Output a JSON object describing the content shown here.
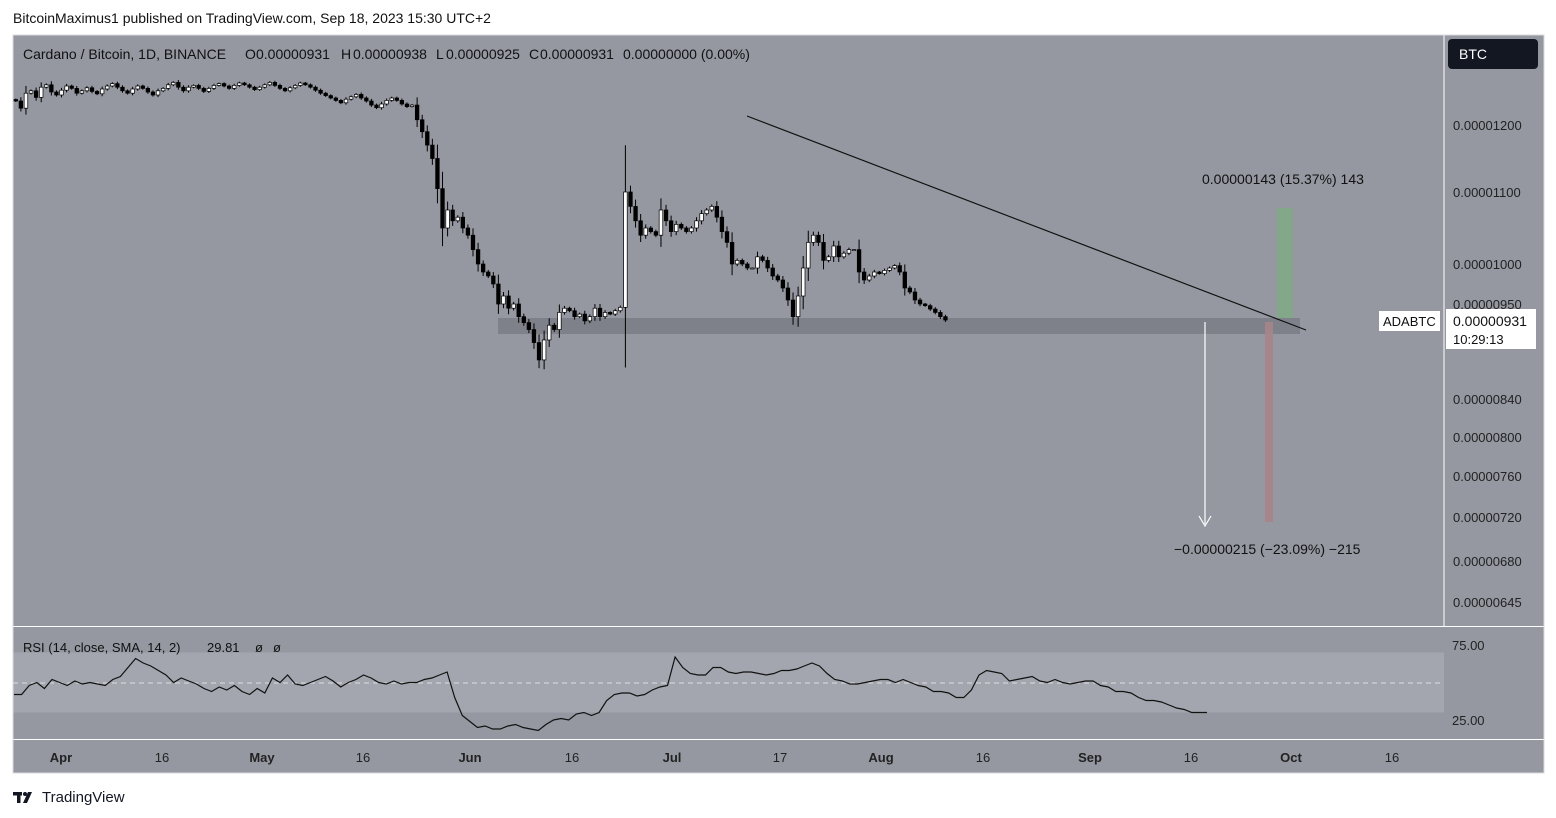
{
  "header": {
    "publisher": "BitcoinMaximus1 published on TradingView.com, Sep 18, 2023 15:30 UTC+2"
  },
  "legend": {
    "symbol": "Cardano / Bitcoin, 1D, BINANCE",
    "open_label": "O",
    "open_value": "0.00000931",
    "high_label": "H",
    "high_value": "0.00000938",
    "low_label": "L",
    "low_value": "0.00000925",
    "close_label": "C",
    "close_value": "0.00000931",
    "change": "0.00000000 (0.00%)"
  },
  "currency_badge": "BTC",
  "price_tag": {
    "ticker": "ADABTC",
    "price": "0.00000931",
    "countdown": "10:29:13"
  },
  "annotations": {
    "upside": "0.00000143 (15.37%) 143",
    "downside": "−0.00000215 (−23.09%) −215"
  },
  "rsi_legend": {
    "label": "RSI (14, close, SMA, 14, 2)",
    "value": "29.81",
    "extra1": "ø",
    "extra2": "ø"
  },
  "footer": {
    "brand": "TradingView"
  },
  "colors": {
    "panel_bg": "#9598a1",
    "text": "#222222",
    "up_candle": "#ffffff",
    "down_candle": "#000000",
    "support_zone": "#7a7d86",
    "target_up": "#80a886",
    "target_down": "#a78488",
    "rsi_band": "#a3a6ae"
  },
  "chart_data": {
    "type": "candlestick",
    "title": "Cardano / Bitcoin, 1D, BINANCE",
    "price_axis_ticks": [
      "0.00001200",
      "0.00001100",
      "0.00001000",
      "0.00000950",
      "0.00000840",
      "0.00000800",
      "0.00000760",
      "0.00000720",
      "0.00000680",
      "0.00000645"
    ],
    "time_axis_ticks": [
      {
        "label": "Apr",
        "bold": true
      },
      {
        "label": "16",
        "bold": false
      },
      {
        "label": "May",
        "bold": true
      },
      {
        "label": "16",
        "bold": false
      },
      {
        "label": "Jun",
        "bold": true
      },
      {
        "label": "16",
        "bold": false
      },
      {
        "label": "Jul",
        "bold": true
      },
      {
        "label": "17",
        "bold": false
      },
      {
        "label": "Aug",
        "bold": true
      },
      {
        "label": "16",
        "bold": false
      },
      {
        "label": "Sep",
        "bold": true
      },
      {
        "label": "16",
        "bold": false
      },
      {
        "label": "Oct",
        "bold": true
      },
      {
        "label": "16",
        "bold": false
      }
    ],
    "rsi_axis_ticks": [
      "75.00",
      "25.00"
    ],
    "close_series": [
      1.245e-05,
      1.232e-05,
      1.258e-05,
      1.262e-05,
      1.251e-05,
      1.268e-05,
      1.272e-05,
      1.26e-05,
      1.255e-05,
      1.263e-05,
      1.27e-05,
      1.266e-05,
      1.258e-05,
      1.262e-05,
      1.267e-05,
      1.261e-05,
      1.257e-05,
      1.265e-05,
      1.27e-05,
      1.274e-05,
      1.268e-05,
      1.262e-05,
      1.258e-05,
      1.265e-05,
      1.27e-05,
      1.266e-05,
      1.26e-05,
      1.255e-05,
      1.262e-05,
      1.266e-05,
      1.272e-05,
      1.276e-05,
      1.268e-05,
      1.262e-05,
      1.268e-05,
      1.271e-05,
      1.266e-05,
      1.261e-05,
      1.266e-05,
      1.271e-05,
      1.274e-05,
      1.27e-05,
      1.266e-05,
      1.271e-05,
      1.275e-05,
      1.272e-05,
      1.268e-05,
      1.264e-05,
      1.268e-05,
      1.272e-05,
      1.276e-05,
      1.271e-05,
      1.266e-05,
      1.262e-05,
      1.267e-05,
      1.271e-05,
      1.275e-05,
      1.272e-05,
      1.268e-05,
      1.263e-05,
      1.258e-05,
      1.254e-05,
      1.25e-05,
      1.246e-05,
      1.242e-05,
      1.248e-05,
      1.252e-05,
      1.256e-05,
      1.25e-05,
      1.245e-05,
      1.238e-05,
      1.233e-05,
      1.24e-05,
      1.246e-05,
      1.25e-05,
      1.246e-05,
      1.24e-05,
      1.235e-05,
      1.238e-05,
      1.21e-05,
      1.19e-05,
      1.17e-05,
      1.15e-05,
      1.105e-05,
      1.05e-05,
      1.075e-05,
      1.06e-05,
      1.065e-05,
      1.05e-05,
      1.04e-05,
      1.02e-05,
      1e-05,
      9.9e-06,
      9.85e-06,
      9.75e-06,
      9.5e-06,
      9.6e-06,
      9.45e-06,
      9.5e-06,
      9.35e-06,
      9.28e-06,
      9.2e-06,
      9.05e-06,
      8.85e-06,
      9.08e-06,
      9.25e-06,
      9.2e-06,
      9.4e-06,
      9.45e-06,
      9.42e-06,
      9.35e-06,
      9.38e-06,
      9.3e-06,
      9.35e-06,
      9.45e-06,
      9.35e-06,
      9.4e-06,
      9.38e-06,
      9.42e-06,
      9.46e-06,
      1.1e-05,
      1.08e-05,
      1.06e-05,
      1.04e-05,
      1.05e-05,
      1.045e-05,
      1.04e-05,
      1.075e-05,
      1.06e-05,
      1.045e-05,
      1.055e-05,
      1.05e-05,
      1.045e-05,
      1.05e-05,
      1.06e-05,
      1.07e-05,
      1.075e-05,
      1.08e-05,
      1.065e-05,
      1.045e-05,
      1.03e-05,
      1e-05,
      1.005e-05,
      1e-05,
      9.95e-06,
      9.95e-06,
      1.01e-05,
      1.005e-05,
      9.95e-06,
      9.85e-06,
      9.8e-06,
      9.7e-06,
      9.55e-06,
      9.35e-06,
      9.6e-06,
      9.95e-06,
      1.03e-05,
      1.04e-05,
      1.03e-05,
      1.005e-05,
      1.01e-05,
      1.025e-05,
      1.01e-05,
      1.015e-05,
      1.02e-05,
      1.02e-05,
      9.9e-06,
      9.8e-06,
      9.85e-06,
      9.9e-06,
      9.88e-06,
      9.92e-06,
      9.95e-06,
      9.98e-06,
      9.9e-06,
      9.7e-06,
      9.65e-06,
      9.55e-06,
      9.5e-06,
      9.48e-06,
      9.44e-06,
      9.4e-06,
      9.35e-06,
      9.31e-06
    ],
    "rsi_series": [
      42,
      42,
      48,
      50,
      46,
      52,
      50,
      48,
      51,
      49,
      50,
      49,
      48,
      52,
      54,
      60,
      66,
      63,
      61,
      58,
      55,
      50,
      53,
      51,
      49,
      46,
      44,
      47,
      45,
      48,
      44,
      42,
      46,
      43,
      53,
      50,
      55,
      49,
      48,
      50,
      52,
      54,
      51,
      47,
      50,
      52,
      55,
      53,
      50,
      49,
      51,
      49,
      50,
      50,
      52,
      53,
      55,
      57,
      40,
      28,
      24,
      20,
      21,
      19,
      19,
      21,
      22,
      20,
      19,
      18,
      22,
      25,
      26,
      25,
      29,
      30,
      28,
      30,
      38,
      42,
      43,
      43,
      41,
      42,
      45,
      47,
      48,
      67,
      60,
      56,
      55,
      55,
      60,
      60,
      57,
      56,
      57,
      57,
      56,
      55,
      56,
      58,
      58,
      59,
      61,
      63,
      61,
      56,
      52,
      51,
      49,
      49,
      50,
      51,
      52,
      52,
      50,
      52,
      50,
      48,
      47,
      44,
      44,
      43,
      40,
      40,
      45,
      55,
      58,
      57,
      56,
      51,
      52,
      53,
      54,
      51,
      50,
      52,
      50,
      49,
      50,
      51,
      51,
      48,
      47,
      44,
      44,
      43,
      40,
      38,
      38,
      37,
      35,
      33,
      32,
      30,
      30,
      30
    ],
    "rsi_value": 29.81,
    "rsi_band": [
      30,
      70
    ],
    "support_zone": [
      9.25e-06,
      9.4e-06
    ],
    "descending_resistance": {
      "start": 1.22e-05,
      "end": 9.25e-06
    },
    "projection_up": {
      "from": 9.31e-06,
      "to": 1.074e-05,
      "change": "0.00000143 (15.37%) 143"
    },
    "projection_down": {
      "from": 9.31e-06,
      "to": 7.16e-06,
      "change": "−0.00000215 (−23.09%) −215"
    }
  }
}
